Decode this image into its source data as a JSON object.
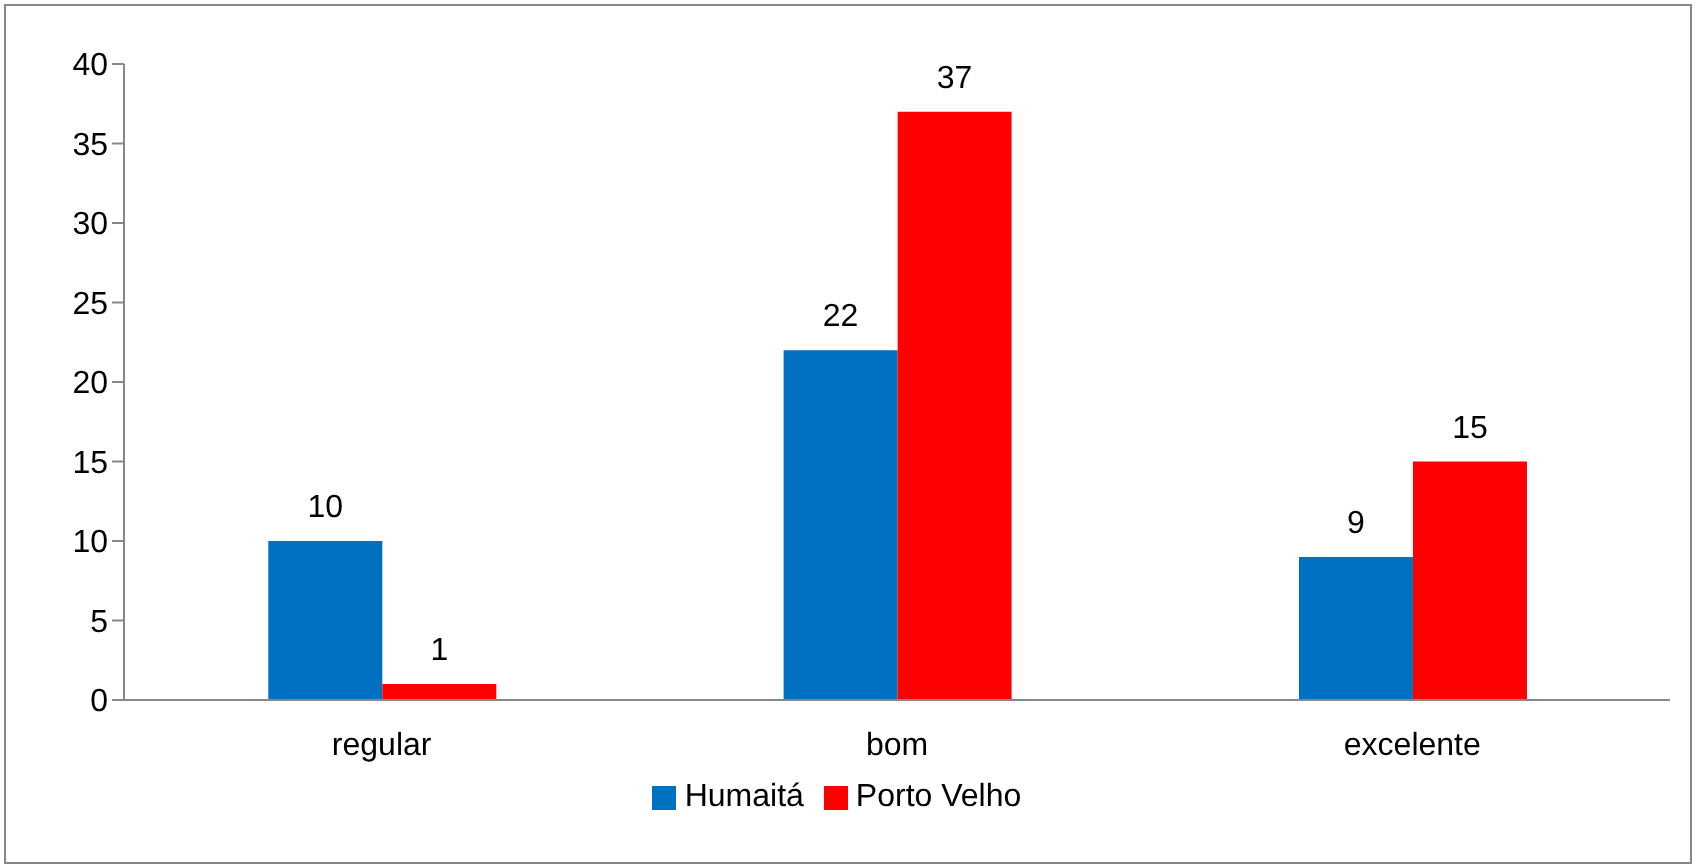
{
  "chart_data": {
    "type": "bar",
    "categories": [
      "regular",
      "bom",
      "excelente"
    ],
    "series": [
      {
        "name": "Humaitá",
        "color": "#0070c0",
        "values": [
          10,
          22,
          9
        ]
      },
      {
        "name": "Porto Velho",
        "color": "#ff0000",
        "values": [
          1,
          37,
          15
        ]
      }
    ],
    "ylim": [
      0,
      40
    ],
    "yticks": [
      0,
      5,
      10,
      15,
      20,
      25,
      30,
      35,
      40
    ],
    "grid": false,
    "legend": "bottom",
    "data_labels": true
  }
}
